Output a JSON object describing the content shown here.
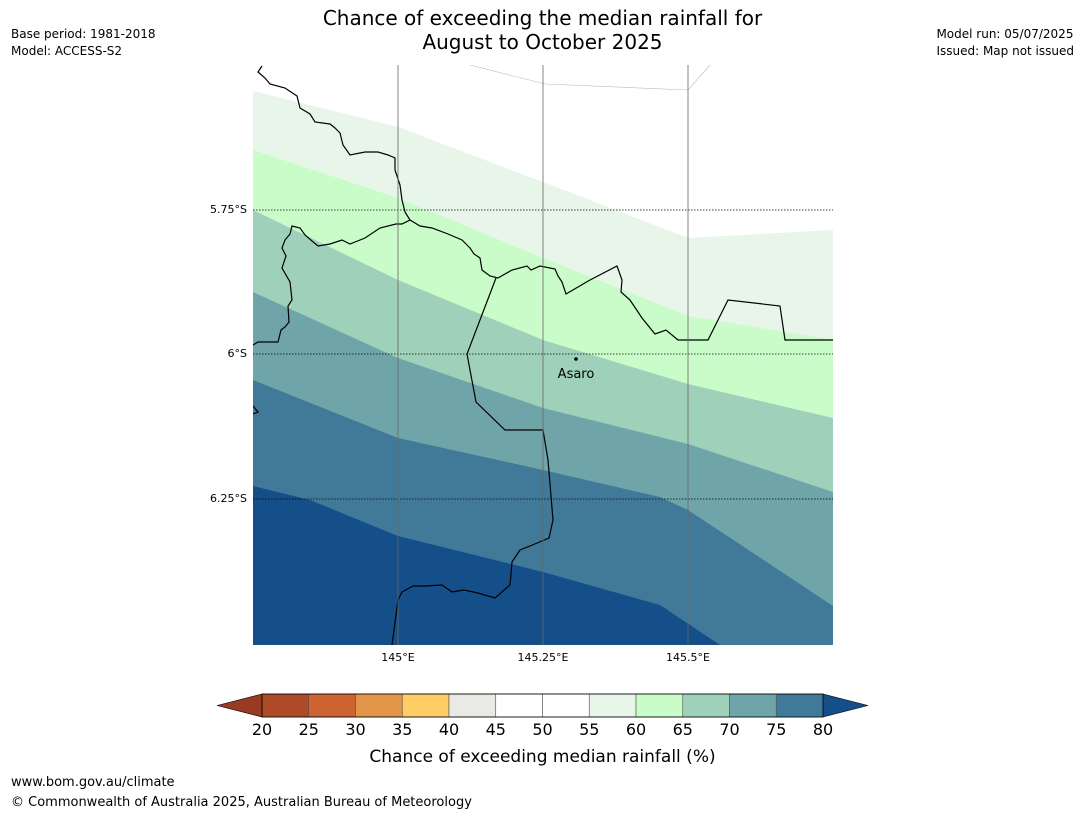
{
  "title": {
    "line1": "Chance of exceeding the median rainfall for",
    "line2": "August to October 2025"
  },
  "meta": {
    "base_period": "Base period: 1981-2018",
    "model": "Model: ACCESS-S2",
    "model_run": "Model run: 05/07/2025",
    "issued": "Issued: Map not issued"
  },
  "map": {
    "lat_labels": [
      "5.75°S",
      "6°S",
      "6.25°S"
    ],
    "lon_labels": [
      "145°E",
      "145.25°E",
      "145.5°E"
    ],
    "place": {
      "name": "Asaro"
    },
    "band_colors": [
      "#e8f5e9",
      "#c9fcc9",
      "#9fd1ba",
      "#6fa4a8",
      "#417a99",
      "#154f89"
    ]
  },
  "colorbar": {
    "ticks": [
      "20",
      "25",
      "30",
      "35",
      "40",
      "45",
      "50",
      "55",
      "60",
      "65",
      "70",
      "75",
      "80"
    ],
    "colors": [
      "#af4a26",
      "#cd6331",
      "#e3954a",
      "#ffcc66",
      "#e9e9e5",
      "#ffffff",
      "#ffffff",
      "#e8f5e9",
      "#c9fcc9",
      "#9fd1ba",
      "#6fa4a8",
      "#417a99"
    ],
    "under_color": "#993a22",
    "over_color": "#154f89",
    "label": "Chance of exceeding median rainfall (%)"
  },
  "footer": {
    "url": "www.bom.gov.au/climate",
    "copyright": "© Commonwealth of Australia 2025, Australian Bureau of Meteorology"
  }
}
